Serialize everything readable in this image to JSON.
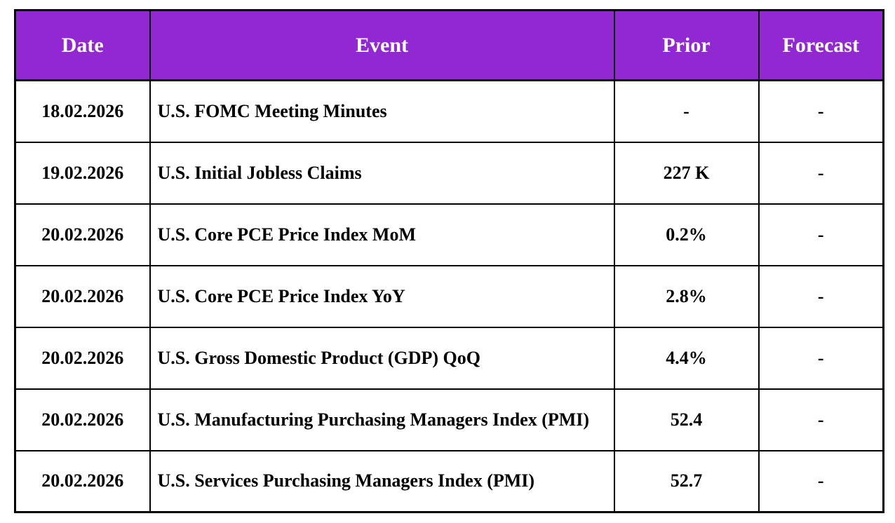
{
  "colors": {
    "header_background": "#9228D2",
    "header_text": "#FFFFFF",
    "body_text": "#000000",
    "border": "#000000",
    "page_background": "#FFFFFF"
  },
  "table": {
    "columns": [
      "Date",
      "Event",
      "Prior",
      "Forecast"
    ],
    "rows": [
      {
        "date": "18.02.2026",
        "event": "U.S. FOMC Meeting Minutes",
        "prior": "-",
        "forecast": "-"
      },
      {
        "date": "19.02.2026",
        "event": "U.S. Initial Jobless Claims",
        "prior": "227 K",
        "forecast": "-"
      },
      {
        "date": "20.02.2026",
        "event": "U.S. Core PCE Price Index MoM",
        "prior": "0.2%",
        "forecast": "-"
      },
      {
        "date": "20.02.2026",
        "event": "U.S. Core PCE Price Index YoY",
        "prior": "2.8%",
        "forecast": "-"
      },
      {
        "date": "20.02.2026",
        "event": "U.S. Gross Domestic Product (GDP) QoQ",
        "prior": "4.4%",
        "forecast": "-"
      },
      {
        "date": "20.02.2026",
        "event": "U.S. Manufacturing Purchasing Managers Index (PMI)",
        "prior": "52.4",
        "forecast": "-"
      },
      {
        "date": "20.02.2026",
        "event": "U.S. Services Purchasing Managers Index (PMI)",
        "prior": "52.7",
        "forecast": "-"
      }
    ]
  },
  "chart_data": {
    "type": "table",
    "title": "",
    "columns": [
      "Date",
      "Event",
      "Prior",
      "Forecast"
    ],
    "rows": [
      [
        "18.02.2026",
        "U.S. FOMC Meeting Minutes",
        "-",
        "-"
      ],
      [
        "19.02.2026",
        "U.S. Initial Jobless Claims",
        "227 K",
        "-"
      ],
      [
        "20.02.2026",
        "U.S. Core PCE Price Index MoM",
        "0.2%",
        "-"
      ],
      [
        "20.02.2026",
        "U.S. Core PCE Price Index YoY",
        "2.8%",
        "-"
      ],
      [
        "20.02.2026",
        "U.S. Gross Domestic Product (GDP) QoQ",
        "4.4%",
        "-"
      ],
      [
        "20.02.2026",
        "U.S. Manufacturing Purchasing Managers Index (PMI)",
        "52.4",
        "-"
      ],
      [
        "20.02.2026",
        "U.S. Services Purchasing Managers Index (PMI)",
        "52.7",
        "-"
      ]
    ]
  }
}
